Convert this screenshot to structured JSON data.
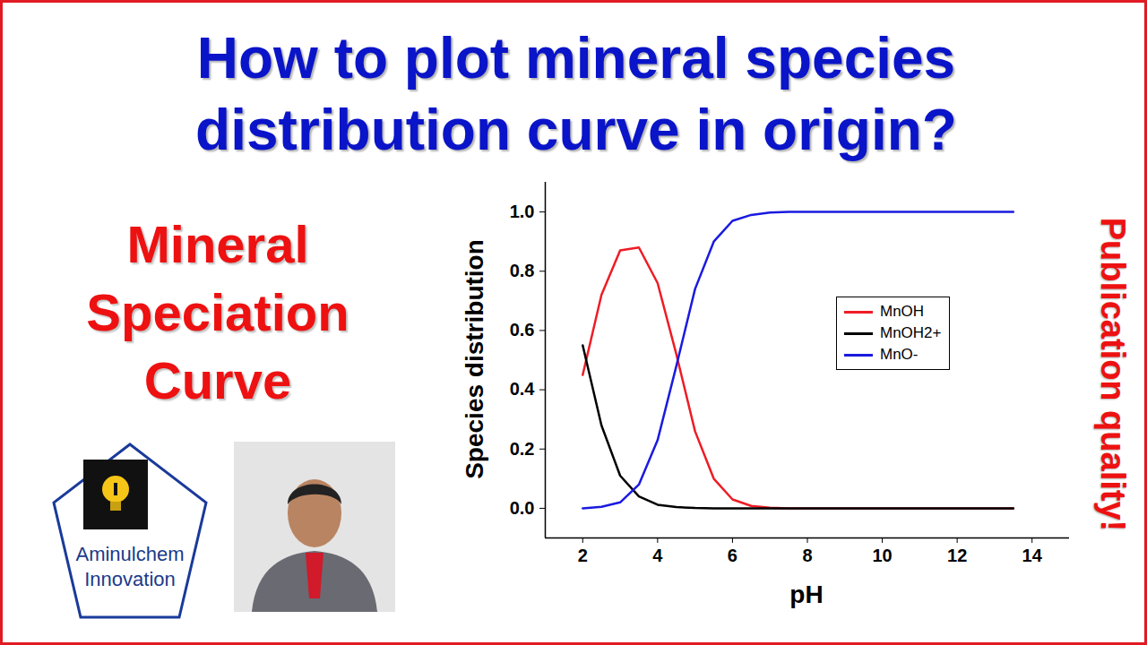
{
  "thumbnail": {
    "headline": "How to plot mineral species distribution curve in origin?",
    "side_title": "Mineral Speciation Curve",
    "vertical_text": "Publication quality!",
    "logo_text": "Aminulchem Innovation"
  },
  "chart_data": {
    "type": "line",
    "x_label": "pH",
    "y_label": "Species distribution",
    "x": [
      2,
      2.5,
      3,
      3.5,
      4,
      4.5,
      5,
      5.5,
      6,
      6.5,
      7,
      7.5,
      8,
      8.5,
      9,
      9.5,
      10,
      10.5,
      11,
      11.5,
      12,
      12.5,
      13,
      13.5
    ],
    "series": [
      {
        "name": "MnOH",
        "color": "#ee1c25",
        "values": [
          0.45,
          0.72,
          0.87,
          0.88,
          0.76,
          0.52,
          0.26,
          0.1,
          0.03,
          0.008,
          0.002,
          0,
          0,
          0,
          0,
          0,
          0,
          0,
          0,
          0,
          0,
          0,
          0,
          0
        ]
      },
      {
        "name": "MnOH2+",
        "color": "#000000",
        "values": [
          0.55,
          0.28,
          0.11,
          0.04,
          0.012,
          0.004,
          0.001,
          0,
          0,
          0,
          0,
          0,
          0,
          0,
          0,
          0,
          0,
          0,
          0,
          0,
          0,
          0,
          0,
          0
        ]
      },
      {
        "name": "MnO-",
        "color": "#1a1ae0",
        "values": [
          0,
          0.005,
          0.02,
          0.08,
          0.23,
          0.48,
          0.74,
          0.9,
          0.97,
          0.99,
          0.998,
          1,
          1,
          1,
          1,
          1,
          1,
          1,
          1,
          1,
          1,
          1,
          1,
          1
        ]
      }
    ],
    "xlim": [
      1,
      15
    ],
    "ylim": [
      -0.1,
      1.1
    ],
    "xticks": [
      2,
      4,
      6,
      8,
      10,
      12,
      14
    ],
    "yticks": [
      {
        "value": 0,
        "label": "0.0"
      },
      0.2,
      0.4,
      0.6,
      0.8,
      {
        "value": 1,
        "label": "1.0"
      }
    ],
    "grid": false,
    "legend": "right"
  }
}
